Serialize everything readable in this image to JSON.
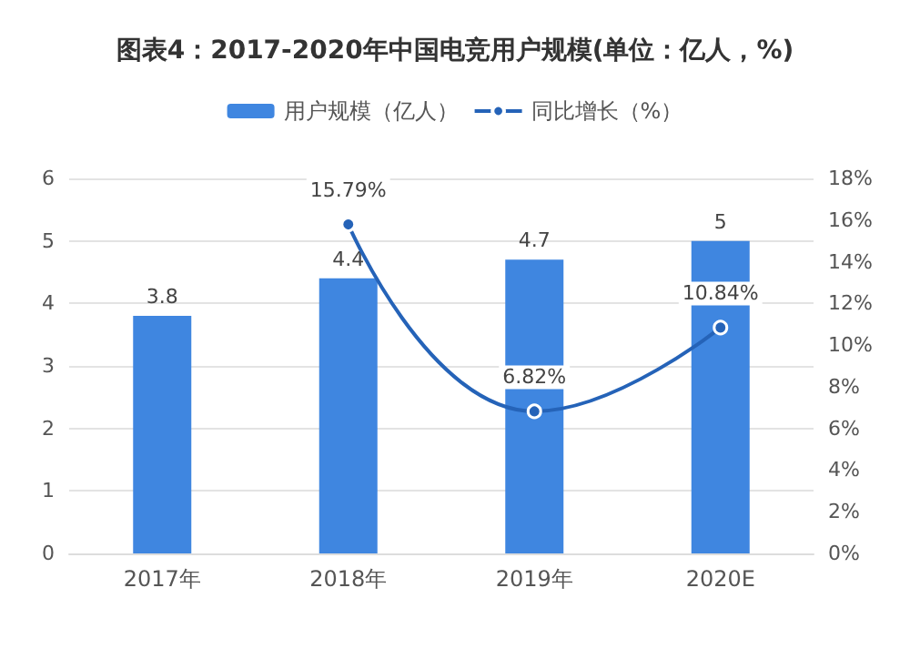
{
  "chart_data": {
    "type": "bar",
    "title": "图表4：2017-2020年中国电竞用户规模(单位：亿人，%)",
    "categories": [
      "2017年",
      "2018年",
      "2019年",
      "2020E"
    ],
    "series": [
      {
        "name": "用户规模（亿人）",
        "color": "#3f86e0",
        "values": [
          3.8,
          4.4,
          4.7,
          5
        ],
        "value_labels": [
          "3.8",
          "4.4",
          "4.7",
          "5"
        ]
      },
      {
        "name": "同比增长（%）",
        "type": "line",
        "axis": "y2",
        "color": "#2563b8",
        "values": [
          null,
          15.79,
          6.82,
          10.84
        ],
        "value_labels": [
          null,
          "15.79%",
          "6.82%",
          "10.84%"
        ]
      }
    ],
    "ylim": [
      0,
      6
    ],
    "yticks": [
      0,
      1,
      2,
      3,
      4,
      5,
      6
    ],
    "y2lim": [
      0,
      18
    ],
    "y2ticks": [
      {
        "value": 0,
        "label": "0%"
      },
      {
        "value": 2,
        "label": "2%"
      },
      {
        "value": 4,
        "label": "4%"
      },
      {
        "value": 6,
        "label": "6%"
      },
      {
        "value": 8,
        "label": "8%"
      },
      {
        "value": 10,
        "label": "10%"
      },
      {
        "value": 12,
        "label": "12%"
      },
      {
        "value": 14,
        "label": "14%"
      },
      {
        "value": 16,
        "label": "16%"
      },
      {
        "value": 18,
        "label": "18%"
      }
    ],
    "grid": "y",
    "legend": "top",
    "marker": "circle"
  }
}
